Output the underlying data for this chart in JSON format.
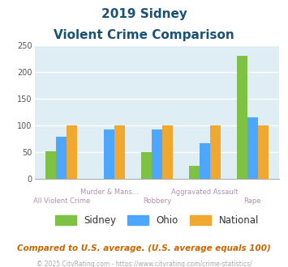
{
  "title_line1": "2019 Sidney",
  "title_line2": "Violent Crime Comparison",
  "categories": [
    "All Violent Crime",
    "Murder & Mans...",
    "Robbery",
    "Aggravated Assault",
    "Rape"
  ],
  "sidney": [
    51,
    0,
    50,
    25,
    230
  ],
  "ohio": [
    79,
    92,
    92,
    67,
    115
  ],
  "national": [
    100,
    100,
    100,
    100,
    100
  ],
  "color_sidney": "#7dc242",
  "color_ohio": "#4da6ff",
  "color_national": "#f0a830",
  "ylim": [
    0,
    250
  ],
  "yticks": [
    0,
    50,
    100,
    150,
    200,
    250
  ],
  "bg_color": "#deeef4",
  "grid_color": "#ffffff",
  "footnote": "Compared to U.S. average. (U.S. average equals 100)",
  "copyright": "© 2025 CityRating.com - https://www.cityrating.com/crime-statistics/",
  "title_color": "#1a5276",
  "footnote_color": "#cc6600",
  "copyright_color": "#aaaaaa",
  "xlabel_color": "#b090b0",
  "bar_width": 0.22,
  "legend_label_color": "#333333"
}
